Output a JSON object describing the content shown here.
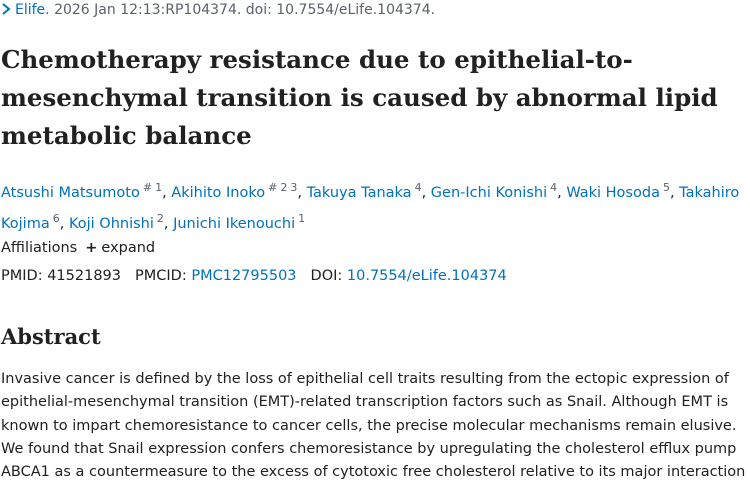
{
  "citation": {
    "journal": "Elife.",
    "details": "2026 Jan 12:13:RP104374. doi: 10.7554/eLife.104374."
  },
  "title": "Chemotherapy resistance due to epithelial-to-mesenchymal transition is caused by abnormal lipid metabolic balance",
  "author_separator": ",",
  "authors": [
    {
      "name": "Atsushi Matsumoto",
      "marks": [
        "#",
        "1"
      ]
    },
    {
      "name": "Akihito Inoko",
      "marks": [
        "#",
        "2",
        "3"
      ]
    },
    {
      "name": "Takuya Tanaka",
      "marks": [
        "4"
      ]
    },
    {
      "name": "Gen-Ichi Konishi",
      "marks": [
        "4"
      ]
    },
    {
      "name": "Waki Hosoda",
      "marks": [
        "5"
      ]
    },
    {
      "name": "Takahiro Kojima",
      "marks": [
        "6"
      ]
    },
    {
      "name": "Koji Ohnishi",
      "marks": [
        "2"
      ]
    },
    {
      "name": "Junichi Ikenouchi",
      "marks": [
        "1"
      ]
    }
  ],
  "affiliations": {
    "label": "Affiliations",
    "toggle": "expand"
  },
  "identifiers": [
    {
      "label": "PMID:",
      "value": "41521893",
      "link": false
    },
    {
      "label": "PMCID:",
      "value": "PMC12795503",
      "link": true
    },
    {
      "label": "DOI:",
      "value": "10.7554/eLife.104374",
      "link": true
    }
  ],
  "abstract": {
    "heading": "Abstract",
    "text": "Invasive cancer is defined by the loss of epithelial cell traits resulting from the ectopic expression of epithelial-mesenchymal transition (EMT)-related transcription factors such as Snail. Although EMT is known to impart chemoresistance to cancer cells, the precise molecular mechanisms remain elusive. We found that Snail expression confers chemoresistance by upregulating the cholesterol efflux pump ABCA1 as a countermeasure to the excess of cytotoxic free cholesterol relative to its major interaction"
  }
}
